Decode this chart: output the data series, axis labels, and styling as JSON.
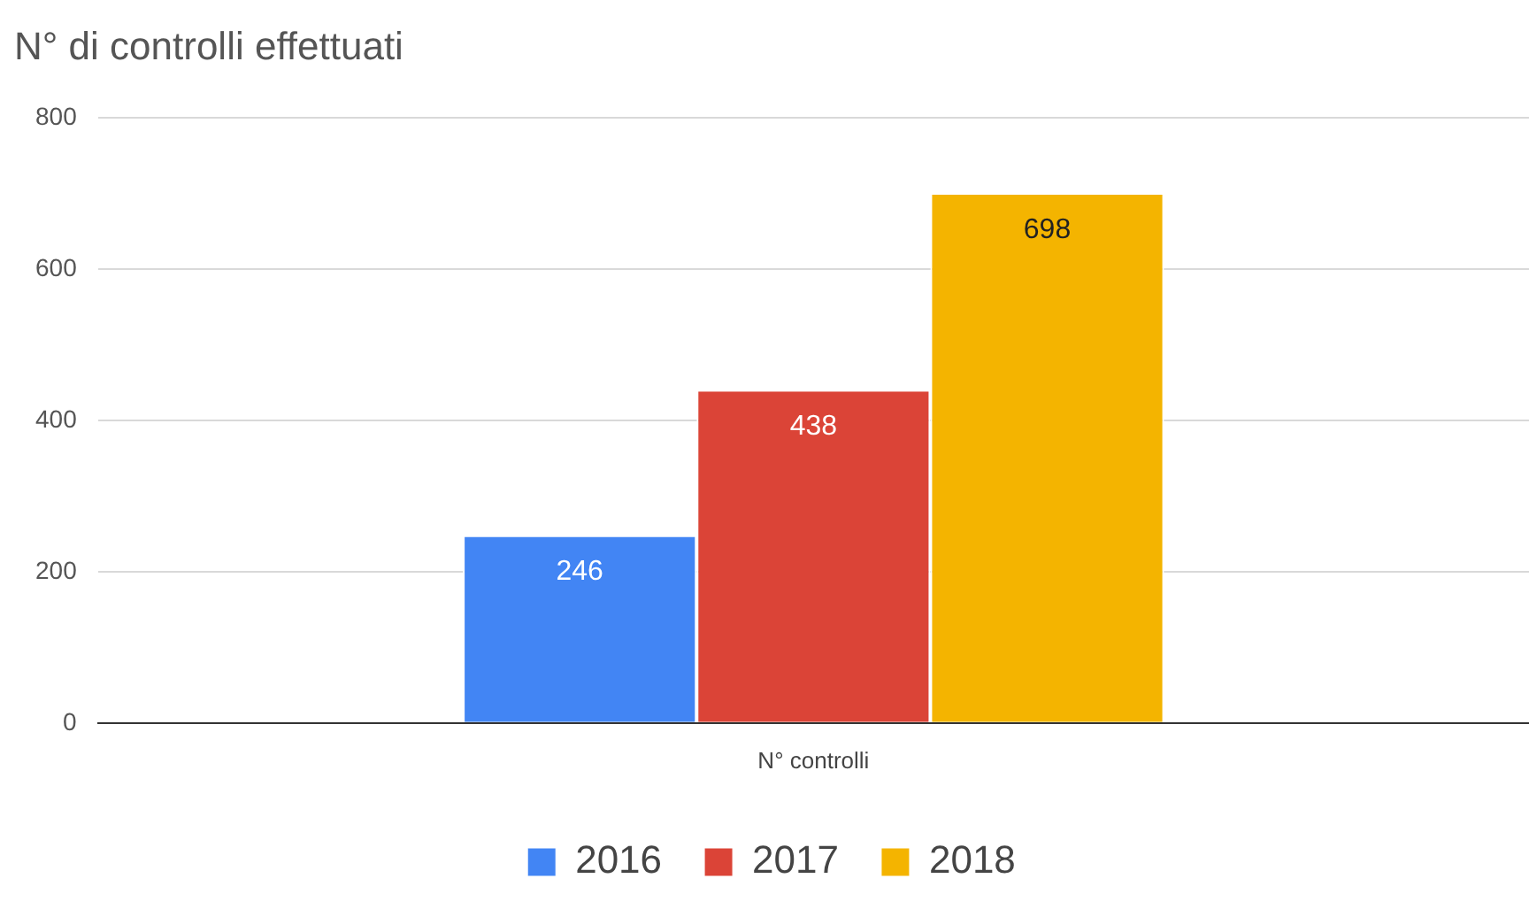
{
  "chart_data": {
    "type": "bar",
    "title": "N° di controlli effettuati",
    "categories": [
      "N° controlli"
    ],
    "series": [
      {
        "name": "2016",
        "color": "#4285f4",
        "values": [
          246
        ]
      },
      {
        "name": "2017",
        "color": "#db4437",
        "values": [
          438
        ]
      },
      {
        "name": "2018",
        "color": "#f4b400",
        "values": [
          698
        ]
      }
    ],
    "ylim": [
      0,
      800
    ],
    "yticks": [
      0,
      200,
      400,
      600,
      800
    ],
    "grid": "y",
    "legend": "bottom",
    "data_labels": true
  }
}
